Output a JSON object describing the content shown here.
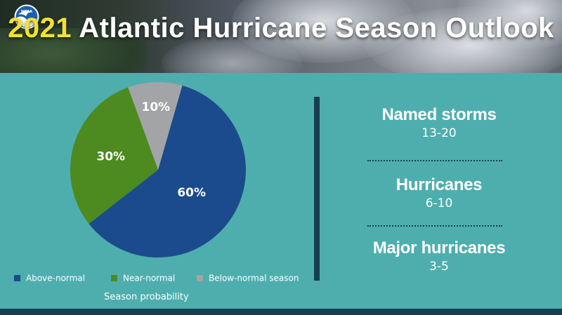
{
  "header": {
    "logo_text": "NOAA",
    "title_year": "2021",
    "title_rest": " Atlantic Hurricane Season Outlook"
  },
  "chart_data": {
    "type": "pie",
    "slices": [
      {
        "label": "Above-normal",
        "value": 60,
        "display": "60%",
        "color": "#1b4b8c"
      },
      {
        "label": "Near-normal",
        "value": 30,
        "display": "30%",
        "color": "#4d8a1f"
      },
      {
        "label": "Below-normal season",
        "value": 10,
        "display": "10%",
        "color": "#a2a4a6"
      }
    ],
    "legend_position": "bottom",
    "caption": "Season probability"
  },
  "stats": [
    {
      "label": "Named storms",
      "value": "13-20"
    },
    {
      "label": "Hurricanes",
      "value": "6-10"
    },
    {
      "label": "Major hurricanes",
      "value": "3-5"
    }
  ],
  "colors": {
    "background": "#4eaead",
    "accent_dark": "#163f4f",
    "title_year": "#f4e033"
  }
}
